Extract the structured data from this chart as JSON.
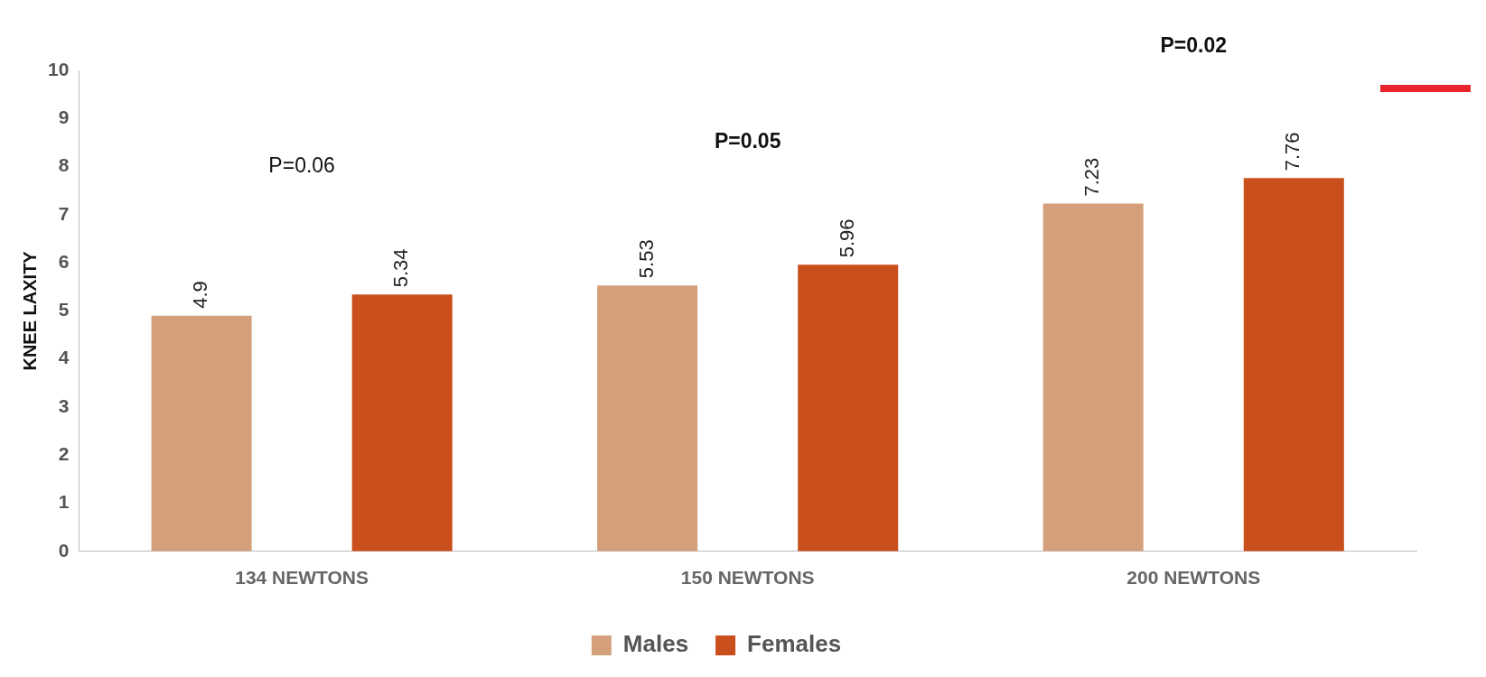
{
  "chart_data": {
    "type": "bar",
    "ylabel": "KNEE LAXITY",
    "categories": [
      "134 NEWTONS",
      "150 NEWTONS",
      "200 NEWTONS"
    ],
    "series": [
      {
        "name": "Males",
        "color": "#d4a07c",
        "values": [
          4.9,
          5.53,
          7.23
        ]
      },
      {
        "name": "Females",
        "color": "#c9501c",
        "values": [
          5.34,
          5.96,
          7.76
        ]
      }
    ],
    "ylim": [
      0,
      10
    ],
    "yticks": [
      0,
      1,
      2,
      3,
      4,
      5,
      6,
      7,
      8,
      9,
      10
    ],
    "grid": false,
    "legend": "bottom",
    "data_labels": true,
    "annotations": [
      "P=0.06",
      "P=0.05",
      "P=0.02"
    ]
  }
}
